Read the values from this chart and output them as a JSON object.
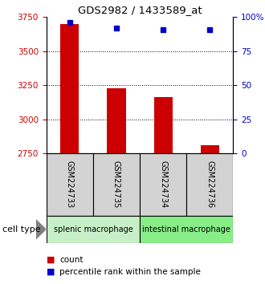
{
  "title": "GDS2982 / 1433589_at",
  "samples": [
    "GSM224733",
    "GSM224735",
    "GSM224734",
    "GSM224736"
  ],
  "counts": [
    3700,
    3230,
    3160,
    2810
  ],
  "percentile_ranks": [
    96,
    92,
    91,
    91
  ],
  "ylim_left": [
    2750,
    3750
  ],
  "ylim_right": [
    0,
    100
  ],
  "yticks_left": [
    2750,
    3000,
    3250,
    3500,
    3750
  ],
  "yticks_right": [
    0,
    25,
    50,
    75,
    100
  ],
  "ytick_labels_right": [
    "0",
    "25",
    "50",
    "75",
    "100%"
  ],
  "bar_color": "#cc0000",
  "dot_color": "#0000cc",
  "bar_width": 0.4,
  "groups": [
    {
      "label": "splenic macrophage",
      "indices": [
        0,
        1
      ],
      "color": "#c8f0c8"
    },
    {
      "label": "intestinal macrophage",
      "indices": [
        2,
        3
      ],
      "color": "#88ee88"
    }
  ],
  "cell_type_label": "cell type",
  "legend_count_label": "count",
  "legend_pct_label": "percentile rank within the sample",
  "left_tick_color": "#cc0000",
  "right_tick_color": "#0000cc",
  "grid_linestyle": "dotted",
  "sample_box_color": "#d3d3d3"
}
